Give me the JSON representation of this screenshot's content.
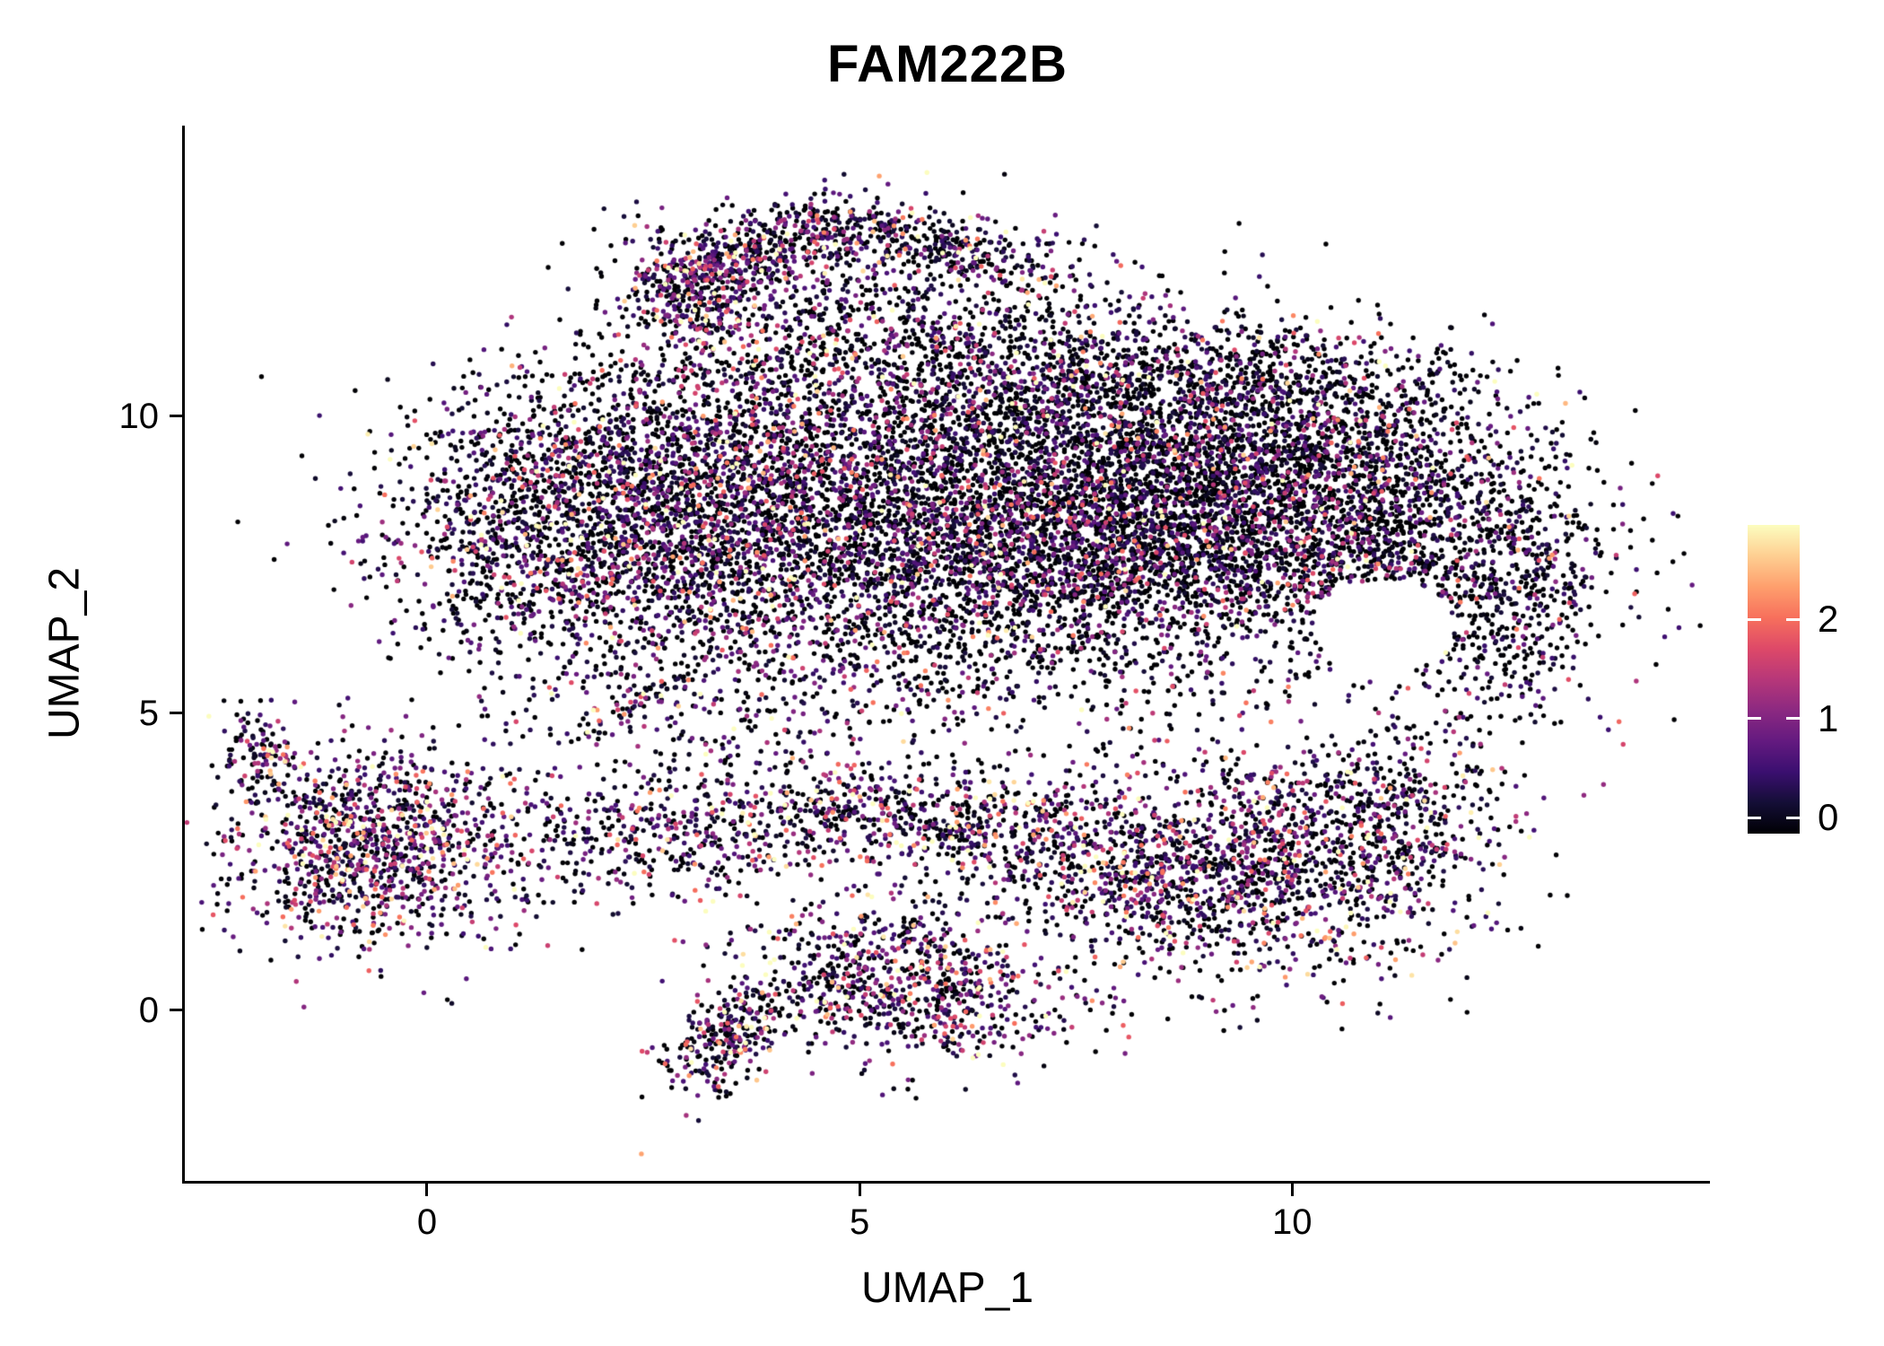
{
  "chart_data": {
    "type": "scatter",
    "title": "FAM222B",
    "xlabel": "UMAP_1",
    "ylabel": "UMAP_2",
    "xticks": [
      0,
      5,
      10
    ],
    "yticks": [
      0,
      5,
      10
    ],
    "xlim": [
      -2.8,
      14.83
    ],
    "ylim": [
      -2.87,
      14.89
    ],
    "grid": false,
    "background": "#ffffff",
    "axis_color": "#000000",
    "point_radius": 2.7,
    "seed": 42,
    "expression_max": 2.9,
    "points_encoding": "gaussian_clusters",
    "colormap": [
      "#000004",
      "#140e36",
      "#3b0f70",
      "#641a80",
      "#8c2981",
      "#b73779",
      "#de4968",
      "#f7705c",
      "#fe9f6d",
      "#fecf92",
      "#fcfdbf"
    ],
    "legend": {
      "position": "right",
      "tick_labels": [
        "0",
        "1",
        "2"
      ],
      "tick_values": [
        0,
        1,
        2
      ],
      "range": [
        -0.16,
        2.95
      ]
    },
    "holes": [
      {
        "cx": 11.05,
        "cy": 6.45,
        "rx": 0.8,
        "ry": 0.8
      }
    ],
    "clusters": [
      {
        "cx": 1.5,
        "cy": 8.2,
        "sx": 1.05,
        "sy": 1.25,
        "n": 1600,
        "p0": 0.4,
        "escale": 0.8,
        "rot": 0
      },
      {
        "cx": 3.4,
        "cy": 8.6,
        "sx": 1.15,
        "sy": 1.55,
        "n": 2000,
        "p0": 0.42,
        "escale": 0.75,
        "rot": 0
      },
      {
        "cx": 5.5,
        "cy": 8.0,
        "sx": 1.35,
        "sy": 1.6,
        "n": 2400,
        "p0": 0.46,
        "escale": 0.7,
        "rot": 0
      },
      {
        "cx": 7.5,
        "cy": 8.5,
        "sx": 1.25,
        "sy": 1.45,
        "n": 2400,
        "p0": 0.48,
        "escale": 0.68,
        "rot": 0
      },
      {
        "cx": 9.3,
        "cy": 8.4,
        "sx": 1.15,
        "sy": 1.35,
        "n": 2200,
        "p0": 0.5,
        "escale": 0.66,
        "rot": 0
      },
      {
        "cx": 11.0,
        "cy": 8.7,
        "sx": 0.95,
        "sy": 0.95,
        "n": 1100,
        "p0": 0.48,
        "escale": 0.68,
        "rot": 0
      },
      {
        "cx": 12.35,
        "cy": 7.1,
        "sx": 0.75,
        "sy": 1.15,
        "n": 750,
        "p0": 0.5,
        "escale": 0.66,
        "rot": 0
      },
      {
        "cx": 6.3,
        "cy": 10.9,
        "sx": 1.7,
        "sy": 0.65,
        "n": 800,
        "p0": 0.42,
        "escale": 0.78,
        "rot": 0
      },
      {
        "cx": 9.6,
        "cy": 10.5,
        "sx": 1.3,
        "sy": 0.55,
        "n": 550,
        "p0": 0.46,
        "escale": 0.7,
        "rot": 0
      },
      {
        "cx": 3.8,
        "cy": 12.75,
        "sx": 0.85,
        "sy": 0.3,
        "n": 450,
        "p0": 0.33,
        "escale": 0.85,
        "rot": 28
      },
      {
        "cx": 5.7,
        "cy": 12.9,
        "sx": 0.95,
        "sy": 0.3,
        "n": 450,
        "p0": 0.36,
        "escale": 0.8,
        "rot": -12
      },
      {
        "cx": 3.1,
        "cy": 12.1,
        "sx": 0.35,
        "sy": 0.55,
        "n": 260,
        "p0": 0.3,
        "escale": 0.9,
        "rot": 20
      },
      {
        "cx": 4.6,
        "cy": 11.9,
        "sx": 1.1,
        "sy": 0.5,
        "n": 220,
        "p0": 0.4,
        "escale": 0.8,
        "rot": 0
      },
      {
        "cx": -0.55,
        "cy": 2.7,
        "sx": 0.85,
        "sy": 0.8,
        "n": 1150,
        "p0": 0.27,
        "escale": 0.95,
        "rot": 0
      },
      {
        "cx": -1.85,
        "cy": 4.3,
        "sx": 0.22,
        "sy": 0.45,
        "n": 120,
        "p0": 0.3,
        "escale": 0.9,
        "rot": 15
      },
      {
        "cx": 2.6,
        "cy": 2.9,
        "sx": 0.95,
        "sy": 0.5,
        "n": 360,
        "p0": 0.3,
        "escale": 0.9,
        "rot": 0
      },
      {
        "cx": 4.9,
        "cy": 3.3,
        "sx": 1.0,
        "sy": 0.45,
        "n": 420,
        "p0": 0.27,
        "escale": 0.95,
        "rot": 0
      },
      {
        "cx": 6.7,
        "cy": 3.0,
        "sx": 0.9,
        "sy": 0.5,
        "n": 380,
        "p0": 0.3,
        "escale": 0.9,
        "rot": 0
      },
      {
        "cx": 8.2,
        "cy": 2.3,
        "sx": 0.7,
        "sy": 0.6,
        "n": 240,
        "p0": 0.33,
        "escale": 0.88,
        "rot": 0
      },
      {
        "cx": 9.6,
        "cy": 2.4,
        "sx": 1.2,
        "sy": 0.95,
        "n": 1400,
        "p0": 0.34,
        "escale": 0.86,
        "rot": 0
      },
      {
        "cx": 11.2,
        "cy": 3.4,
        "sx": 0.6,
        "sy": 0.7,
        "n": 330,
        "p0": 0.36,
        "escale": 0.84,
        "rot": 0
      },
      {
        "cx": 5.6,
        "cy": 0.3,
        "sx": 0.95,
        "sy": 0.6,
        "n": 750,
        "p0": 0.3,
        "escale": 0.9,
        "rot": 0
      },
      {
        "cx": 3.45,
        "cy": -0.5,
        "sx": 0.6,
        "sy": 0.26,
        "n": 280,
        "p0": 0.3,
        "escale": 0.9,
        "rot": 55
      },
      {
        "cx": 5.0,
        "cy": 1.3,
        "sx": 0.85,
        "sy": 0.4,
        "n": 130,
        "p0": 0.35,
        "escale": 0.85,
        "rot": 0
      },
      {
        "cx": 3.4,
        "cy": 4.6,
        "sx": 1.2,
        "sy": 0.5,
        "n": 110,
        "p0": 0.35,
        "escale": 0.85,
        "rot": 0
      },
      {
        "cx": 2.5,
        "cy": 5.3,
        "sx": 0.8,
        "sy": 0.15,
        "n": 80,
        "p0": 0.35,
        "escale": 0.85,
        "rot": 45
      }
    ]
  }
}
